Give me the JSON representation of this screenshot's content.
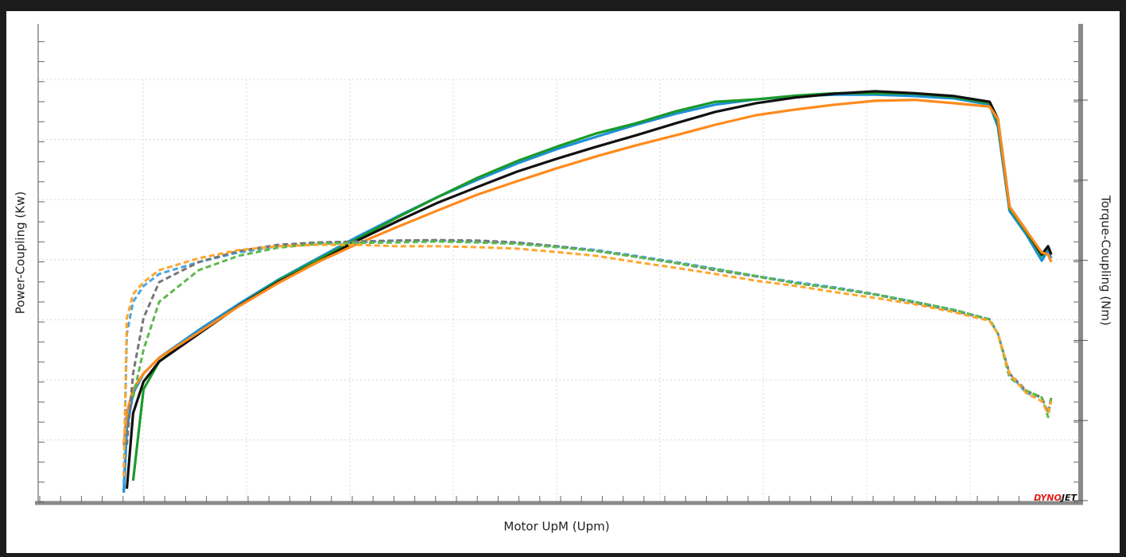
{
  "chart_data": {
    "type": "line",
    "x_label": "Motor UpM (Upm)",
    "y_label": "Power-Coupling  (Kw)",
    "y2_label": "Torque-Coupling    (Nm)",
    "logo_parts": [
      "DYNO",
      "JET"
    ],
    "xlim": [
      0,
      100
    ],
    "ylim": [
      0,
      100
    ],
    "y2lim": [
      0,
      100
    ],
    "grid": true,
    "x": [
      8.2,
      8.5,
      9.1,
      10.1,
      11.6,
      15.4,
      19.2,
      23.0,
      26.8,
      30.6,
      34.5,
      38.3,
      42.1,
      45.9,
      49.7,
      53.5,
      57.3,
      61.1,
      64.9,
      68.8,
      72.6,
      76.4,
      80.2,
      84.0,
      87.8,
      91.2,
      92.0,
      93.1,
      94.7,
      96.2,
      96.8,
      97.1
    ],
    "series": [
      {
        "color": "#1e8fd8",
        "dashed": false,
        "axis": "y",
        "values": [
          2.0,
          15.3,
          22.8,
          26.9,
          30.2,
          36.0,
          41.4,
          46.5,
          51.0,
          55.5,
          59.8,
          63.8,
          67.4,
          70.8,
          73.8,
          76.4,
          78.9,
          81.2,
          83.1,
          84.2,
          84.9,
          85.2,
          85.2,
          84.9,
          84.4,
          83.1,
          78.4,
          60.9,
          56.0,
          50.5,
          52.7,
          51.0
        ]
      },
      {
        "color": "#1a9a2a",
        "dashed": false,
        "axis": "y",
        "values": [
          null,
          null,
          4.5,
          23.6,
          29.4,
          35.5,
          41.0,
          46.3,
          50.7,
          55.1,
          59.6,
          63.8,
          67.8,
          71.3,
          74.3,
          77.1,
          79.2,
          81.7,
          83.7,
          84.2,
          85.0,
          85.5,
          85.5,
          85.4,
          84.7,
          83.4,
          79.2,
          61.5,
          56.5,
          51.5,
          53.5,
          51.8
        ]
      },
      {
        "color": "#111111",
        "dashed": false,
        "axis": "y",
        "values": [
          null,
          2.8,
          18.6,
          25.2,
          29.4,
          35.2,
          41.0,
          46.0,
          50.2,
          54.7,
          58.8,
          62.6,
          65.9,
          69.1,
          71.8,
          74.3,
          76.7,
          79.2,
          81.6,
          83.4,
          84.6,
          85.4,
          85.9,
          85.5,
          84.9,
          83.7,
          80.1,
          61.8,
          56.8,
          51.8,
          53.5,
          51.8
        ]
      },
      {
        "color": "#ff8a1c",
        "dashed": false,
        "axis": "y",
        "values": [
          12.0,
          18.6,
          23.6,
          26.9,
          30.2,
          35.5,
          40.9,
          45.8,
          50.2,
          54.0,
          57.6,
          61.0,
          64.3,
          67.1,
          69.8,
          72.3,
          74.6,
          76.7,
          78.9,
          80.9,
          82.1,
          83.1,
          83.9,
          84.1,
          83.4,
          82.7,
          80.1,
          61.8,
          56.8,
          52.2,
          51.8,
          50.2
        ]
      },
      {
        "color": "#4aa5e2",
        "dashed": true,
        "axis": "y2",
        "values": [
          3.7,
          35.2,
          41.9,
          45.2,
          47.7,
          50.2,
          52.2,
          53.5,
          54.2,
          54.3,
          54.7,
          54.7,
          54.5,
          54.2,
          53.5,
          52.7,
          51.5,
          50.2,
          48.8,
          47.3,
          46.0,
          44.9,
          43.5,
          41.9,
          40.2,
          38.2,
          35.2,
          26.9,
          22.8,
          21.9,
          18.6,
          21.9
        ]
      },
      {
        "color": "#777777",
        "dashed": true,
        "axis": "y2",
        "values": [
          null,
          12.0,
          26.9,
          38.5,
          46.0,
          50.2,
          52.5,
          53.8,
          54.3,
          54.5,
          54.7,
          54.8,
          54.7,
          54.3,
          53.5,
          52.5,
          51.3,
          50.0,
          48.5,
          47.2,
          45.8,
          44.7,
          43.4,
          41.7,
          40.0,
          38.2,
          35.2,
          26.9,
          23.3,
          21.9,
          18.6,
          21.9
        ]
      },
      {
        "color": "#5cba4a",
        "dashed": true,
        "axis": "y2",
        "values": [
          null,
          null,
          21.9,
          31.9,
          41.9,
          48.5,
          51.5,
          53.2,
          54.0,
          54.2,
          54.3,
          54.5,
          54.3,
          54.0,
          53.3,
          52.5,
          51.3,
          50.0,
          48.7,
          47.3,
          45.8,
          44.7,
          43.4,
          41.9,
          40.2,
          38.2,
          35.2,
          26.1,
          23.3,
          21.9,
          17.8,
          21.9
        ]
      },
      {
        "color": "#ffa62b",
        "dashed": true,
        "axis": "y2",
        "values": [
          5.3,
          38.5,
          43.5,
          46.0,
          48.5,
          51.0,
          52.7,
          53.5,
          53.8,
          53.8,
          53.5,
          53.5,
          53.3,
          53.0,
          52.3,
          51.5,
          50.2,
          49.0,
          47.7,
          46.3,
          45.2,
          43.9,
          42.7,
          41.4,
          39.7,
          37.9,
          35.2,
          26.9,
          22.8,
          21.1,
          18.6,
          21.1
        ]
      }
    ]
  }
}
